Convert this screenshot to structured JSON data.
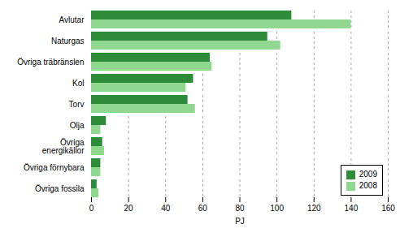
{
  "chart_data": {
    "type": "bar",
    "orientation": "horizontal",
    "categories": [
      "Avlutar",
      "Naturgas",
      "Övriga träbränslen",
      "Kol",
      "Torv",
      "Olja",
      "Övriga\nenergikällor",
      "Övriga förnybara",
      "Övriga fossila"
    ],
    "series": [
      {
        "name": "2009",
        "color": "#2e8b3a",
        "values": [
          108,
          95,
          64,
          55,
          52,
          8,
          6,
          5,
          3
        ]
      },
      {
        "name": "2008",
        "color": "#90d890",
        "values": [
          140,
          102,
          65,
          51,
          56,
          5,
          7,
          5,
          4
        ]
      }
    ],
    "xlabel": "PJ",
    "xlim": [
      0,
      160
    ],
    "xticks": [
      0,
      20,
      40,
      60,
      80,
      100,
      120,
      140,
      160
    ],
    "grid": true,
    "legend": "lower right"
  }
}
